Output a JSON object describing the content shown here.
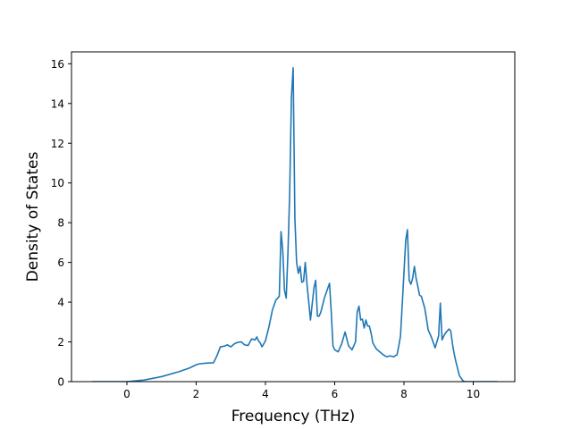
{
  "chart_data": {
    "type": "line",
    "title": "",
    "xlabel": "Frequency (THz)",
    "ylabel": "Density of States",
    "xlim": [
      -1.6,
      11.2
    ],
    "ylim": [
      0,
      16.6
    ],
    "grid": false,
    "x_ticks": [
      0,
      2,
      4,
      6,
      8,
      10
    ],
    "y_ticks": [
      0,
      2,
      4,
      6,
      8,
      10,
      12,
      14,
      16
    ],
    "series": [
      {
        "color": "#1f77b4",
        "x": [
          -1.0,
          0.0,
          0.5,
          1.0,
          1.5,
          1.8,
          2.0,
          2.1,
          2.3,
          2.5,
          2.6,
          2.7,
          2.8,
          2.9,
          3.0,
          3.1,
          3.2,
          3.3,
          3.4,
          3.5,
          3.6,
          3.7,
          3.75,
          3.8,
          3.85,
          3.9,
          4.0,
          4.1,
          4.2,
          4.3,
          4.4,
          4.45,
          4.5,
          4.55,
          4.6,
          4.65,
          4.7,
          4.75,
          4.8,
          4.85,
          4.9,
          4.95,
          5.0,
          5.05,
          5.1,
          5.15,
          5.2,
          5.3,
          5.4,
          5.45,
          5.5,
          5.55,
          5.6,
          5.7,
          5.8,
          5.85,
          5.9,
          5.95,
          6.0,
          6.1,
          6.2,
          6.3,
          6.4,
          6.5,
          6.6,
          6.65,
          6.7,
          6.75,
          6.8,
          6.85,
          6.9,
          6.95,
          7.0,
          7.05,
          7.1,
          7.2,
          7.3,
          7.4,
          7.5,
          7.6,
          7.7,
          7.8,
          7.85,
          7.9,
          8.0,
          8.05,
          8.1,
          8.15,
          8.2,
          8.25,
          8.3,
          8.35,
          8.4,
          8.45,
          8.5,
          8.6,
          8.7,
          8.8,
          8.9,
          9.0,
          9.05,
          9.1,
          9.15,
          9.2,
          9.3,
          9.35,
          9.4,
          9.45,
          9.5,
          9.6,
          9.7,
          9.75,
          9.8,
          10.0,
          10.7
        ],
        "values": [
          0.0,
          0.0,
          0.08,
          0.25,
          0.5,
          0.68,
          0.85,
          0.9,
          0.93,
          0.95,
          1.3,
          1.75,
          1.78,
          1.85,
          1.75,
          1.9,
          1.98,
          2.0,
          1.85,
          1.82,
          2.15,
          2.1,
          2.25,
          2.05,
          1.95,
          1.75,
          2.05,
          2.75,
          3.6,
          4.1,
          4.3,
          7.55,
          6.6,
          4.6,
          4.2,
          6.5,
          9.5,
          14.3,
          15.8,
          8.2,
          6.0,
          5.45,
          5.8,
          5.0,
          5.05,
          6.0,
          4.9,
          3.1,
          4.7,
          5.1,
          3.3,
          3.3,
          3.5,
          4.2,
          4.7,
          4.95,
          3.5,
          1.8,
          1.6,
          1.5,
          1.9,
          2.5,
          1.8,
          1.6,
          2.0,
          3.5,
          3.8,
          3.1,
          3.15,
          2.7,
          3.1,
          2.8,
          2.8,
          2.45,
          1.95,
          1.65,
          1.5,
          1.35,
          1.25,
          1.3,
          1.25,
          1.35,
          1.8,
          2.3,
          5.5,
          7.1,
          7.65,
          5.1,
          4.9,
          5.2,
          5.8,
          5.2,
          4.8,
          4.35,
          4.3,
          3.7,
          2.6,
          2.2,
          1.7,
          2.3,
          3.95,
          2.1,
          2.3,
          2.45,
          2.65,
          2.55,
          1.9,
          1.4,
          1.0,
          0.3,
          0.05,
          0.0,
          0.0,
          0.0,
          0.0
        ]
      }
    ]
  }
}
